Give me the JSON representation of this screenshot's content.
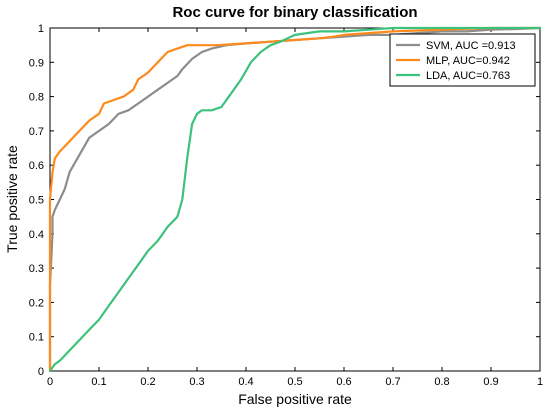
{
  "chart_data": {
    "type": "line",
    "title": "Roc curve for binary classification",
    "xlabel": "False positive rate",
    "ylabel": "True positive rate",
    "xlim": [
      0,
      1
    ],
    "ylim": [
      0,
      1
    ],
    "xticks": [
      "0",
      "0.1",
      "0.2",
      "0.3",
      "0.4",
      "0.5",
      "0.6",
      "0.7",
      "0.8",
      "0.9",
      "1"
    ],
    "yticks": [
      "0",
      "0.1",
      "0.2",
      "0.3",
      "0.4",
      "0.5",
      "0.6",
      "0.7",
      "0.8",
      "0.9",
      "1"
    ],
    "grid": false,
    "legend_position": "top-right",
    "series": [
      {
        "name": "SVM, AUC =0.913",
        "color": "#8c8c8c",
        "x": [
          0,
          0,
          0.005,
          0.005,
          0.01,
          0.02,
          0.03,
          0.04,
          0.06,
          0.08,
          0.1,
          0.12,
          0.14,
          0.16,
          0.18,
          0.2,
          0.22,
          0.24,
          0.26,
          0.27,
          0.29,
          0.31,
          0.33,
          0.36,
          0.4,
          0.45,
          0.5,
          0.55,
          0.6,
          0.65,
          0.7,
          0.75,
          0.8,
          0.85,
          0.9,
          0.95,
          1
        ],
        "y": [
          0,
          0.25,
          0.4,
          0.45,
          0.47,
          0.5,
          0.53,
          0.58,
          0.63,
          0.68,
          0.7,
          0.72,
          0.75,
          0.76,
          0.78,
          0.8,
          0.82,
          0.84,
          0.86,
          0.88,
          0.91,
          0.93,
          0.94,
          0.95,
          0.955,
          0.96,
          0.965,
          0.97,
          0.975,
          0.98,
          0.98,
          0.985,
          0.99,
          0.99,
          0.995,
          0.997,
          1
        ]
      },
      {
        "name": "MLP, AUC=0.942",
        "color": "#ff8a1c",
        "x": [
          0,
          0,
          0.005,
          0.01,
          0.02,
          0.04,
          0.06,
          0.08,
          0.1,
          0.11,
          0.13,
          0.15,
          0.17,
          0.18,
          0.2,
          0.22,
          0.24,
          0.26,
          0.28,
          0.3,
          0.34,
          0.4,
          0.45,
          0.5,
          0.55,
          0.58,
          0.6,
          0.65,
          0.7,
          0.8,
          0.9,
          1
        ],
        "y": [
          0,
          0.5,
          0.58,
          0.62,
          0.64,
          0.67,
          0.7,
          0.73,
          0.75,
          0.78,
          0.79,
          0.8,
          0.82,
          0.85,
          0.87,
          0.9,
          0.93,
          0.94,
          0.95,
          0.95,
          0.95,
          0.955,
          0.96,
          0.965,
          0.97,
          0.975,
          0.98,
          0.985,
          0.99,
          0.995,
          1,
          1
        ]
      },
      {
        "name": "LDA, AUC=0.763",
        "color": "#3cc27a",
        "x": [
          0,
          0.01,
          0.02,
          0.04,
          0.06,
          0.08,
          0.1,
          0.12,
          0.14,
          0.16,
          0.18,
          0.2,
          0.22,
          0.24,
          0.26,
          0.27,
          0.28,
          0.29,
          0.3,
          0.31,
          0.33,
          0.35,
          0.37,
          0.39,
          0.41,
          0.43,
          0.45,
          0.47,
          0.5,
          0.55,
          0.6,
          0.65,
          0.7,
          0.8,
          0.9,
          1
        ],
        "y": [
          0,
          0.02,
          0.03,
          0.06,
          0.09,
          0.12,
          0.15,
          0.19,
          0.23,
          0.27,
          0.31,
          0.35,
          0.38,
          0.42,
          0.45,
          0.5,
          0.62,
          0.72,
          0.75,
          0.76,
          0.76,
          0.77,
          0.81,
          0.85,
          0.9,
          0.93,
          0.95,
          0.96,
          0.98,
          0.99,
          0.99,
          0.995,
          1,
          1,
          1,
          1
        ]
      }
    ]
  }
}
